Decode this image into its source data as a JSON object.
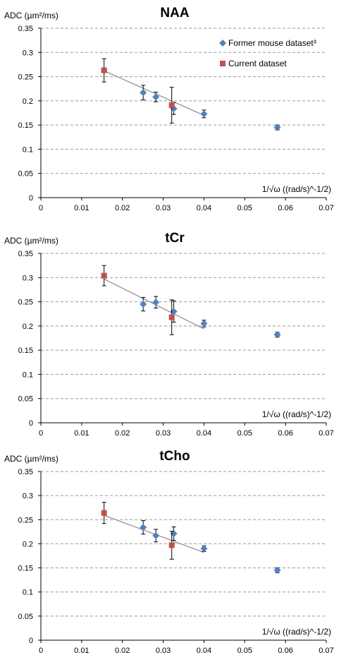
{
  "colors": {
    "former": "#4f81bd",
    "current": "#c0504d",
    "fit": "#8c8c8c",
    "grid": "#999999"
  },
  "chart_data": [
    {
      "type": "scatter",
      "title": "NAA",
      "ylabel": "ADC (µm²/ms)",
      "xlabel": "1/√ω  ((rad/s)^-1/2)",
      "xlim": [
        0,
        0.07
      ],
      "ylim": [
        0,
        0.35
      ],
      "x_ticks": [
        "0",
        "0.01",
        "0.02",
        "0.03",
        "0.04",
        "0.05",
        "0.06",
        "0.07"
      ],
      "y_ticks": [
        "0",
        "0.05",
        "0.1",
        "0.15",
        "0.2",
        "0.25",
        "0.3",
        "0.35"
      ],
      "grid": "horizontal dashed",
      "legend_position": "top-right",
      "legend": [
        "Former mouse dataset³",
        "Current dataset"
      ],
      "series": [
        {
          "name": "Former mouse dataset³",
          "marker": "diamond",
          "x": [
            0.0251,
            0.0282,
            0.0326,
            0.04,
            0.058
          ],
          "y": [
            0.217,
            0.208,
            0.184,
            0.173,
            0.145
          ],
          "err": [
            0.015,
            0.01,
            0.012,
            0.008,
            0.005
          ]
        },
        {
          "name": "Current dataset",
          "marker": "square",
          "x": [
            0.0155,
            0.0321
          ],
          "y": [
            0.263,
            0.191
          ],
          "err": [
            0.024,
            0.037
          ]
        }
      ],
      "fit_line": {
        "x": [
          0.0155,
          0.04
        ],
        "y": [
          0.262,
          0.17
        ]
      }
    },
    {
      "type": "scatter",
      "title": "tCr",
      "ylabel": "ADC (µm²/ms)",
      "xlabel": "1/√ω  ((rad/s)^-1/2)",
      "xlim": [
        0,
        0.07
      ],
      "ylim": [
        0,
        0.35
      ],
      "x_ticks": [
        "0",
        "0.01",
        "0.02",
        "0.03",
        "0.04",
        "0.05",
        "0.06",
        "0.07"
      ],
      "y_ticks": [
        "0",
        "0.05",
        "0.1",
        "0.15",
        "0.2",
        "0.25",
        "0.3",
        "0.35"
      ],
      "grid": "horizontal dashed",
      "series": [
        {
          "name": "Former mouse dataset³",
          "marker": "diamond",
          "x": [
            0.0251,
            0.0282,
            0.0326,
            0.04,
            0.058
          ],
          "y": [
            0.245,
            0.249,
            0.23,
            0.205,
            0.182
          ],
          "err": [
            0.014,
            0.012,
            0.022,
            0.007,
            0.005
          ]
        },
        {
          "name": "Current dataset",
          "marker": "square",
          "x": [
            0.0155,
            0.0321
          ],
          "y": [
            0.304,
            0.218
          ],
          "err": [
            0.021,
            0.036
          ]
        }
      ],
      "fit_line": {
        "x": [
          0.0155,
          0.04
        ],
        "y": [
          0.297,
          0.194
        ]
      }
    },
    {
      "type": "scatter",
      "title": "tCho",
      "ylabel": "ADC (µm²/ms)",
      "xlabel": "1/√ω  ((rad/s)^-1/2)",
      "xlim": [
        0,
        0.07
      ],
      "ylim": [
        0,
        0.35
      ],
      "x_ticks": [
        "0",
        "0.01",
        "0.02",
        "0.03",
        "0.04",
        "0.05",
        "0.06",
        "0.07"
      ],
      "y_ticks": [
        "0",
        "0.05",
        "0.1",
        "0.15",
        "0.2",
        "0.25",
        "0.3",
        "0.35"
      ],
      "grid": "horizontal dashed",
      "series": [
        {
          "name": "Former mouse dataset³",
          "marker": "diamond",
          "x": [
            0.0251,
            0.0282,
            0.0326,
            0.04,
            0.058
          ],
          "y": [
            0.234,
            0.217,
            0.221,
            0.19,
            0.145
          ],
          "err": [
            0.014,
            0.013,
            0.014,
            0.006,
            0.005
          ]
        },
        {
          "name": "Current dataset",
          "marker": "square",
          "x": [
            0.0155,
            0.0321
          ],
          "y": [
            0.264,
            0.197
          ],
          "err": [
            0.022,
            0.029
          ]
        }
      ],
      "fit_line": {
        "x": [
          0.0155,
          0.04
        ],
        "y": [
          0.259,
          0.182
        ]
      }
    }
  ]
}
